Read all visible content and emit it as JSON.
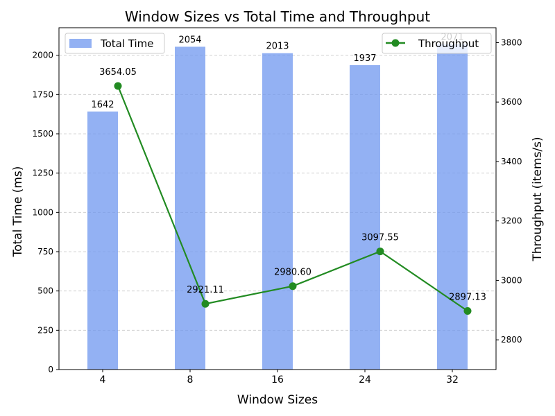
{
  "chart_data": {
    "type": "bar+line",
    "title": "Window Sizes vs Total Time and Throughput",
    "xlabel": "Window Sizes",
    "ylabel_left": "Total Time (ms)",
    "ylabel_right": "Throughput (items/s)",
    "categories": [
      "4",
      "8",
      "16",
      "24",
      "32"
    ],
    "ylim_left": [
      0,
      2175
    ],
    "yticks_left": [
      0,
      250,
      500,
      750,
      1000,
      1250,
      1500,
      1750,
      2000
    ],
    "ylim_right": [
      2700,
      3850
    ],
    "yticks_right": [
      2800,
      3000,
      3200,
      3400,
      3600,
      3800
    ],
    "grid": "horizontal dashed",
    "series": [
      {
        "name": "Total Time",
        "type": "bar",
        "axis": "left",
        "color": "#6f97ef",
        "values": [
          1642,
          2054,
          2013,
          1937,
          2071
        ],
        "labels": [
          "1642",
          "2054",
          "2013",
          "1937",
          "2071"
        ]
      },
      {
        "name": "Throughput",
        "type": "line",
        "axis": "right",
        "color": "#228b22",
        "marker": "circle",
        "values": [
          3654.05,
          2921.11,
          2980.6,
          3097.55,
          2897.13
        ],
        "labels": [
          "3654.05",
          "2921.11",
          "2980.60",
          "3097.55",
          "2897.13"
        ]
      }
    ],
    "legend_left": "top-left",
    "legend_right": "top-right"
  }
}
